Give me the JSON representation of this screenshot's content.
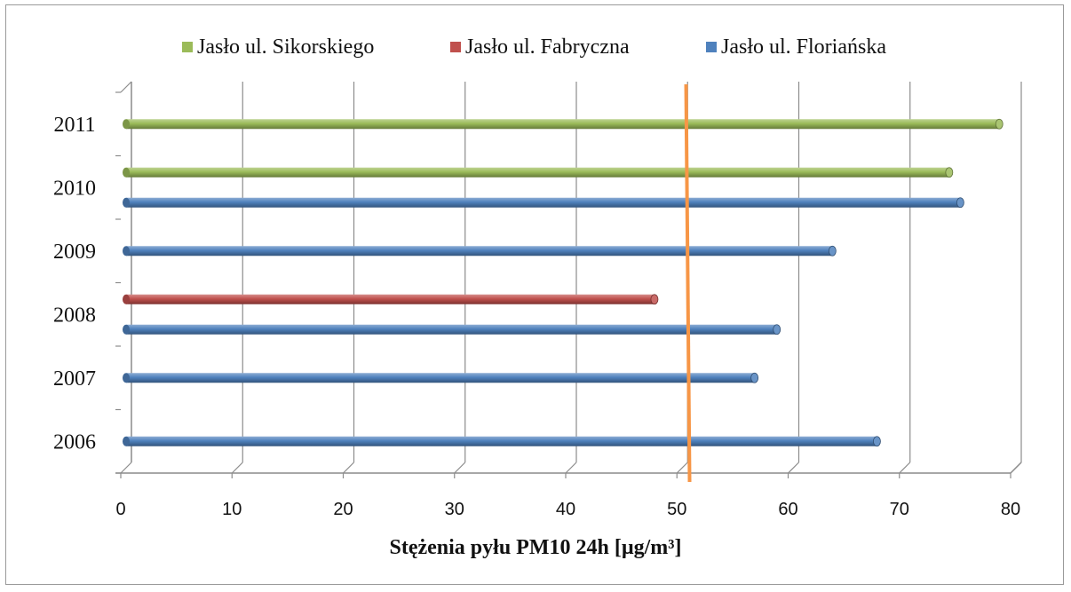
{
  "chart_data": {
    "type": "bar",
    "orientation": "horizontal",
    "categories": [
      "2006",
      "2007",
      "2008",
      "2009",
      "2010",
      "2011"
    ],
    "series": [
      {
        "name": "Jasło ul. Floriańska",
        "color": "#4f81bd",
        "values": [
          67.5,
          56.5,
          58.5,
          63.5,
          75,
          null
        ]
      },
      {
        "name": "Jasło ul. Fabryczna",
        "color": "#c0504d",
        "values": [
          null,
          null,
          47.5,
          null,
          null,
          null
        ]
      },
      {
        "name": "Jasło ul. Sikorskiego",
        "color": "#9bbb59",
        "values": [
          null,
          null,
          null,
          null,
          74,
          78.5
        ]
      }
    ],
    "legend_order": [
      2,
      1,
      0
    ],
    "xlim": [
      0,
      80
    ],
    "xticks": [
      "0",
      "10",
      "20",
      "30",
      "40",
      "50",
      "60",
      "70",
      "80"
    ],
    "xlabel": "Stężenia pyłu PM10 24h [µg/m³]",
    "ylabel": "",
    "reference_line": {
      "value": 50.5,
      "color": "#f79646"
    },
    "grid": true,
    "legend_position": "top",
    "style": "3d-cylinder"
  }
}
